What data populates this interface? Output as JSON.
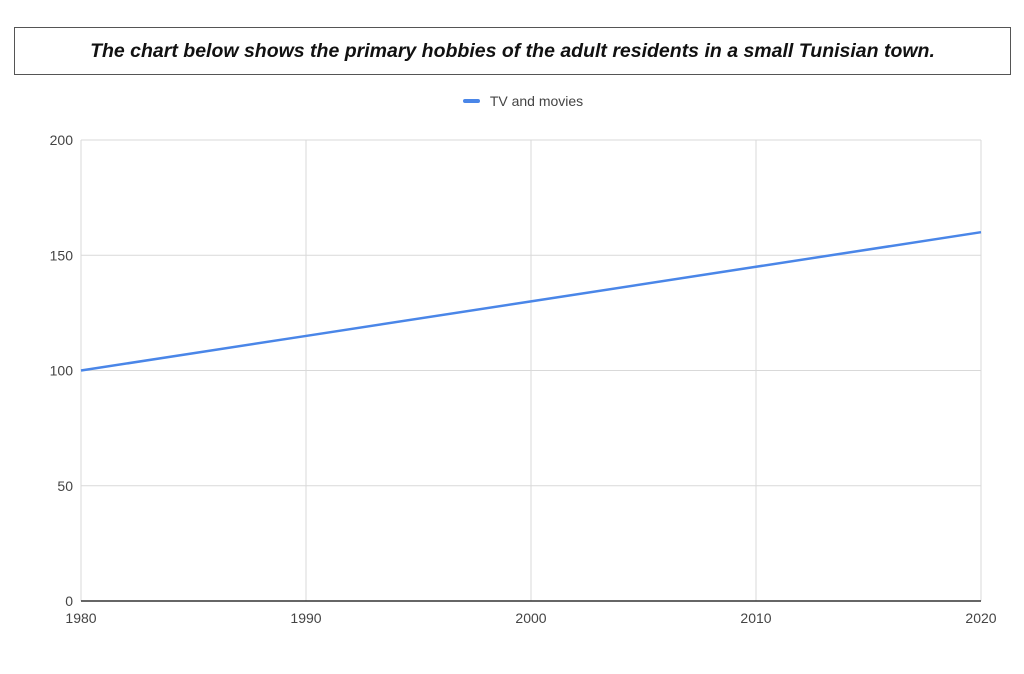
{
  "header": {
    "title": "The chart below shows the primary hobbies of the adult residents in a small Tunisian town."
  },
  "colors": {
    "series": "#4a86e8",
    "grid": "#d9d9d9",
    "axis": "#333333"
  },
  "chart_data": {
    "type": "line",
    "title": "The chart below shows the primary hobbies of the adult residents in a small Tunisian town.",
    "xlabel": "",
    "ylabel": "",
    "x": [
      1980,
      1990,
      2000,
      2010,
      2020
    ],
    "series": [
      {
        "name": "TV and movies",
        "values": [
          100,
          115,
          130,
          145,
          160
        ]
      }
    ],
    "xlim": [
      1980,
      2020
    ],
    "ylim": [
      0,
      200
    ],
    "x_ticks": [
      "1980",
      "1990",
      "2000",
      "2010",
      "2020"
    ],
    "y_ticks": [
      "0",
      "50",
      "100",
      "150",
      "200"
    ],
    "grid": true,
    "legend_position": "top-center"
  }
}
